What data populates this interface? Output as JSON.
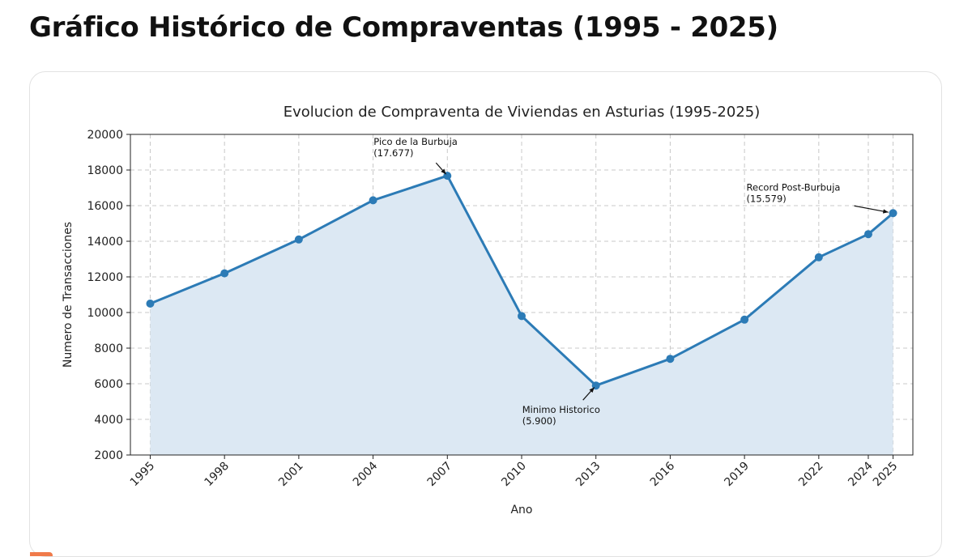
{
  "page": {
    "title": "Gráfico Histórico de Compraventas (1995 - 2025)"
  },
  "chart_data": {
    "type": "area",
    "title": "Evolucion de Compraventa de Viviendas en Asturias (1995-2025)",
    "xlabel": "Ano",
    "ylabel": "Numero de Transacciones",
    "x": [
      1995,
      1998,
      2001,
      2004,
      2007,
      2010,
      2013,
      2016,
      2019,
      2022,
      2024,
      2025
    ],
    "xticks": [
      "1995",
      "1998",
      "2001",
      "2004",
      "2007",
      "2010",
      "2013",
      "2016",
      "2019",
      "2022",
      "2024",
      "2025"
    ],
    "series": [
      {
        "values": [
          10500,
          12200,
          14100,
          16300,
          17677,
          9800,
          5900,
          7400,
          9600,
          13100,
          14400,
          15579
        ],
        "color": "#2c7bb6",
        "fill_color": "#dce8f3"
      }
    ],
    "ylim": [
      2000,
      20000
    ],
    "yticks": [
      "2000",
      "4000",
      "6000",
      "8000",
      "10000",
      "12000",
      "14000",
      "16000",
      "18000",
      "20000"
    ],
    "grid": true,
    "annotations": [
      {
        "line1": "Pico de la Burbuja",
        "line2": "(17.677)",
        "x": 2007,
        "y": 17677,
        "text_pos": "upper-left"
      },
      {
        "line1": "Minimo Historico",
        "line2": "(5.900)",
        "x": 2013,
        "y": 5900,
        "text_pos": "lower-left"
      },
      {
        "line1": "Record Post-Burbuja",
        "line2": "(15.579)",
        "x": 2025,
        "y": 15579,
        "text_pos": "upper-left"
      }
    ]
  }
}
